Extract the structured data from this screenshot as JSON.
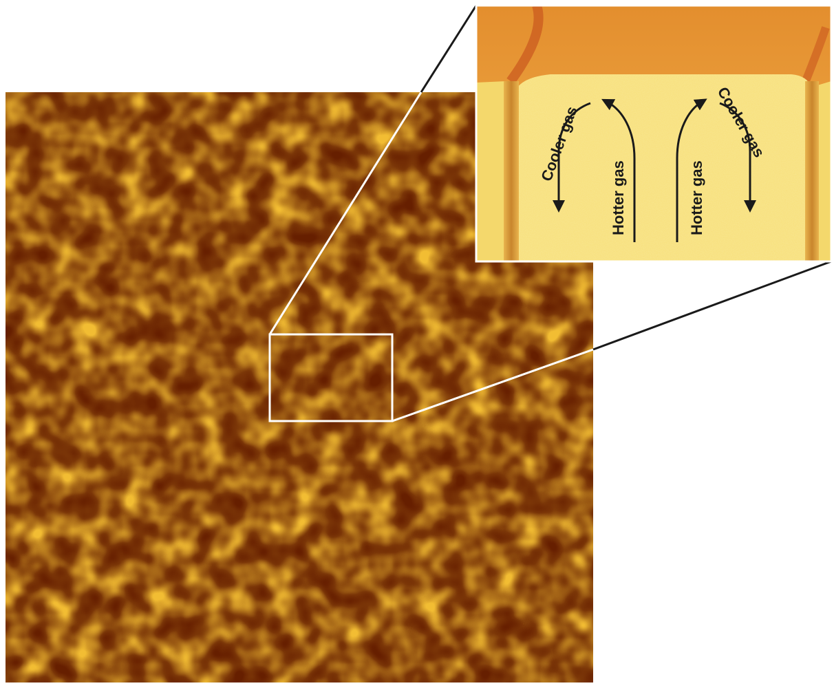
{
  "inset": {
    "labels": {
      "cooler_left": "Cooler gas",
      "hotter_left": "Hotter gas",
      "hotter_right": "Hotter gas",
      "cooler_right": "Cooler gas"
    }
  },
  "colors": {
    "granule_bright": "#ffd84a",
    "granule_mid": "#f0a21c",
    "intergranular_dark": "#6a3a06",
    "inset_cell": "#f8e27a",
    "inset_lane": "#d89a3a",
    "inset_top": "#e79a3c",
    "zoom_frame": "#ffffff",
    "leader_line": "#1a1a1a",
    "arrow": "#1a1a1a"
  },
  "icons": {
    "flow_arrow": "curved-arrow-icon"
  }
}
